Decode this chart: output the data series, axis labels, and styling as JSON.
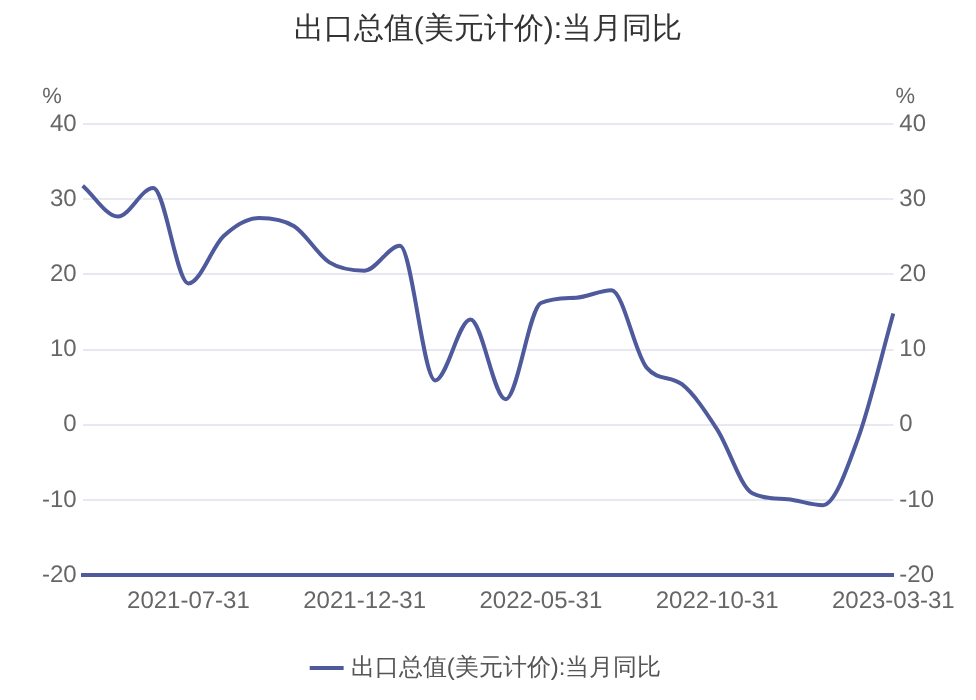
{
  "chart_data": {
    "type": "line",
    "title": "出口总值(美元计价):当月同比",
    "categories": [
      null,
      null,
      null,
      "2021-07-31",
      null,
      null,
      null,
      null,
      "2021-12-31",
      null,
      null,
      null,
      null,
      "2022-05-31",
      null,
      null,
      null,
      null,
      "2022-10-31",
      null,
      null,
      null,
      null,
      "2023-03-31"
    ],
    "series": [
      {
        "name": "出口总值(美元计价):当月同比",
        "color": "#4e5a9b",
        "values": [
          31.8,
          27.7,
          31.5,
          18.8,
          25.1,
          27.5,
          26.4,
          21.6,
          20.5,
          23.8,
          5.9,
          14.0,
          3.4,
          16.2,
          16.9,
          17.9,
          7.6,
          5.4,
          -0.6,
          -9.1,
          -9.9,
          -10.7,
          -1.8,
          14.8
        ]
      }
    ],
    "ylabel": "%",
    "y2label": "%",
    "ylim": [
      -20,
      40
    ],
    "yticks": [
      -20,
      -10,
      0,
      10,
      20,
      30,
      40
    ],
    "y2lim": [
      -20,
      40
    ],
    "y2ticks": [
      -20,
      -10,
      0,
      10,
      20,
      30,
      40
    ],
    "grid": "y",
    "legend": "bottom",
    "marker": "none",
    "line_style": "solid"
  }
}
